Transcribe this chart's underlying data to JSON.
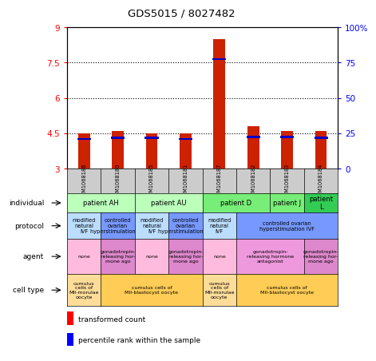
{
  "title": "GDS5015 / 8027482",
  "samples": [
    "GSM1068186",
    "GSM1068180",
    "GSM1068185",
    "GSM1068181",
    "GSM1068187",
    "GSM1068182",
    "GSM1068183",
    "GSM1068184"
  ],
  "red_values": [
    4.5,
    4.6,
    4.5,
    4.5,
    8.5,
    4.8,
    4.6,
    4.6
  ],
  "blue_values": [
    4.25,
    4.3,
    4.3,
    4.25,
    7.65,
    4.35,
    4.35,
    4.3
  ],
  "ylim_min": 3,
  "ylim_max": 9,
  "yticks_left": [
    3,
    4.5,
    6,
    7.5,
    9
  ],
  "yticks_right": [
    0,
    25,
    50,
    75,
    100
  ],
  "yticks_right_labels": [
    "0",
    "25",
    "50",
    "75",
    "100%"
  ],
  "bar_width": 0.35,
  "bar_color_red": "#cc2200",
  "bar_color_blue": "#0000cc",
  "sample_bg": "#cccccc",
  "individual_rows": [
    {
      "label": "patient AH",
      "cols": [
        0,
        1
      ],
      "color": "#bbffbb"
    },
    {
      "label": "patient AU",
      "cols": [
        2,
        3
      ],
      "color": "#bbffbb"
    },
    {
      "label": "patient D",
      "cols": [
        4,
        5
      ],
      "color": "#77ee77"
    },
    {
      "label": "patient J",
      "cols": [
        6
      ],
      "color": "#77ee77"
    },
    {
      "label": "patient\nL",
      "cols": [
        7
      ],
      "color": "#33cc55"
    }
  ],
  "protocol_rows": [
    {
      "label": "modified\nnatural\nIVF",
      "cols": [
        0
      ],
      "color": "#bbddff"
    },
    {
      "label": "controlled\novarian\nhyperstimulation IVF",
      "cols": [
        1
      ],
      "color": "#7799ff"
    },
    {
      "label": "modified\nnatural\nIVF",
      "cols": [
        2
      ],
      "color": "#bbddff"
    },
    {
      "label": "controlled\novarian\nhyperstimulation IVF",
      "cols": [
        3
      ],
      "color": "#7799ff"
    },
    {
      "label": "modified\nnatural\nIVF",
      "cols": [
        4
      ],
      "color": "#bbddff"
    },
    {
      "label": "controlled ovarian\nhyperstimulation IVF",
      "cols": [
        5,
        6,
        7
      ],
      "color": "#7799ff"
    }
  ],
  "agent_rows": [
    {
      "label": "none",
      "cols": [
        0
      ],
      "color": "#ffbbdd"
    },
    {
      "label": "gonadotropin-\nreleasing hor-\nmone ago",
      "cols": [
        1
      ],
      "color": "#dd88cc"
    },
    {
      "label": "none",
      "cols": [
        2
      ],
      "color": "#ffbbdd"
    },
    {
      "label": "gonadotropin-\nreleasing hor-\nmone ago",
      "cols": [
        3
      ],
      "color": "#dd88cc"
    },
    {
      "label": "none",
      "cols": [
        4
      ],
      "color": "#ffbbdd"
    },
    {
      "label": "gonadotropin-\nreleasing hormone\nantagonist",
      "cols": [
        5,
        6
      ],
      "color": "#ee99dd"
    },
    {
      "label": "gonadotropin-\nreleasing hor-\nmone ago",
      "cols": [
        7
      ],
      "color": "#dd88cc"
    }
  ],
  "celltype_rows": [
    {
      "label": "cumulus\ncells of\nMII-morulae\noocyte",
      "cols": [
        0
      ],
      "color": "#ffdd99"
    },
    {
      "label": "cumulus cells of\nMII-blastocyst oocyte",
      "cols": [
        1,
        2,
        3
      ],
      "color": "#ffcc55"
    },
    {
      "label": "cumulus\ncells of\nMII-morulae\noocyte",
      "cols": [
        4
      ],
      "color": "#ffdd99"
    },
    {
      "label": "cumulus cells of\nMII-blastocyst oocyte",
      "cols": [
        5,
        6,
        7
      ],
      "color": "#ffcc55"
    }
  ],
  "row_labels": [
    "individual",
    "protocol",
    "agent",
    "cell type"
  ],
  "legend_red_label": "transformed count",
  "legend_blue_label": "percentile rank within the sample"
}
